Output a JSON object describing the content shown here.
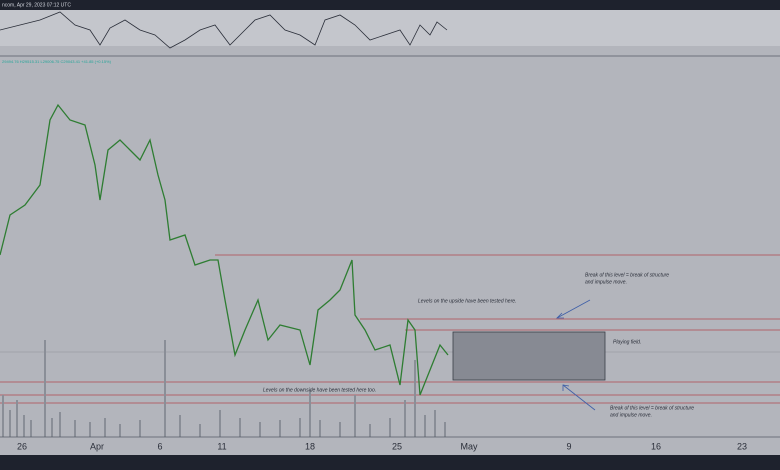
{
  "header": {
    "source": "ncom, Apr 29, 2023 07:12 UTC",
    "ohlc": "29494.76 H29515.31 L29006.75 C29043.41 +41.85 (+0.15%)"
  },
  "x_axis": {
    "labels": [
      "26",
      "Apr",
      "6",
      "11",
      "18",
      "25",
      "May",
      "9",
      "16",
      "23"
    ]
  },
  "annotations": {
    "upper_break": [
      "Break of this level = break of structure",
      "and impulse move."
    ],
    "upside_tested": "Levels on the upside have been tested here.",
    "playing_field": "Playing field.",
    "downside_tested": "Levels on the downside have been tested here too.",
    "lower_break": [
      "Break of this level = break of structure",
      "and impulse move."
    ]
  }
}
